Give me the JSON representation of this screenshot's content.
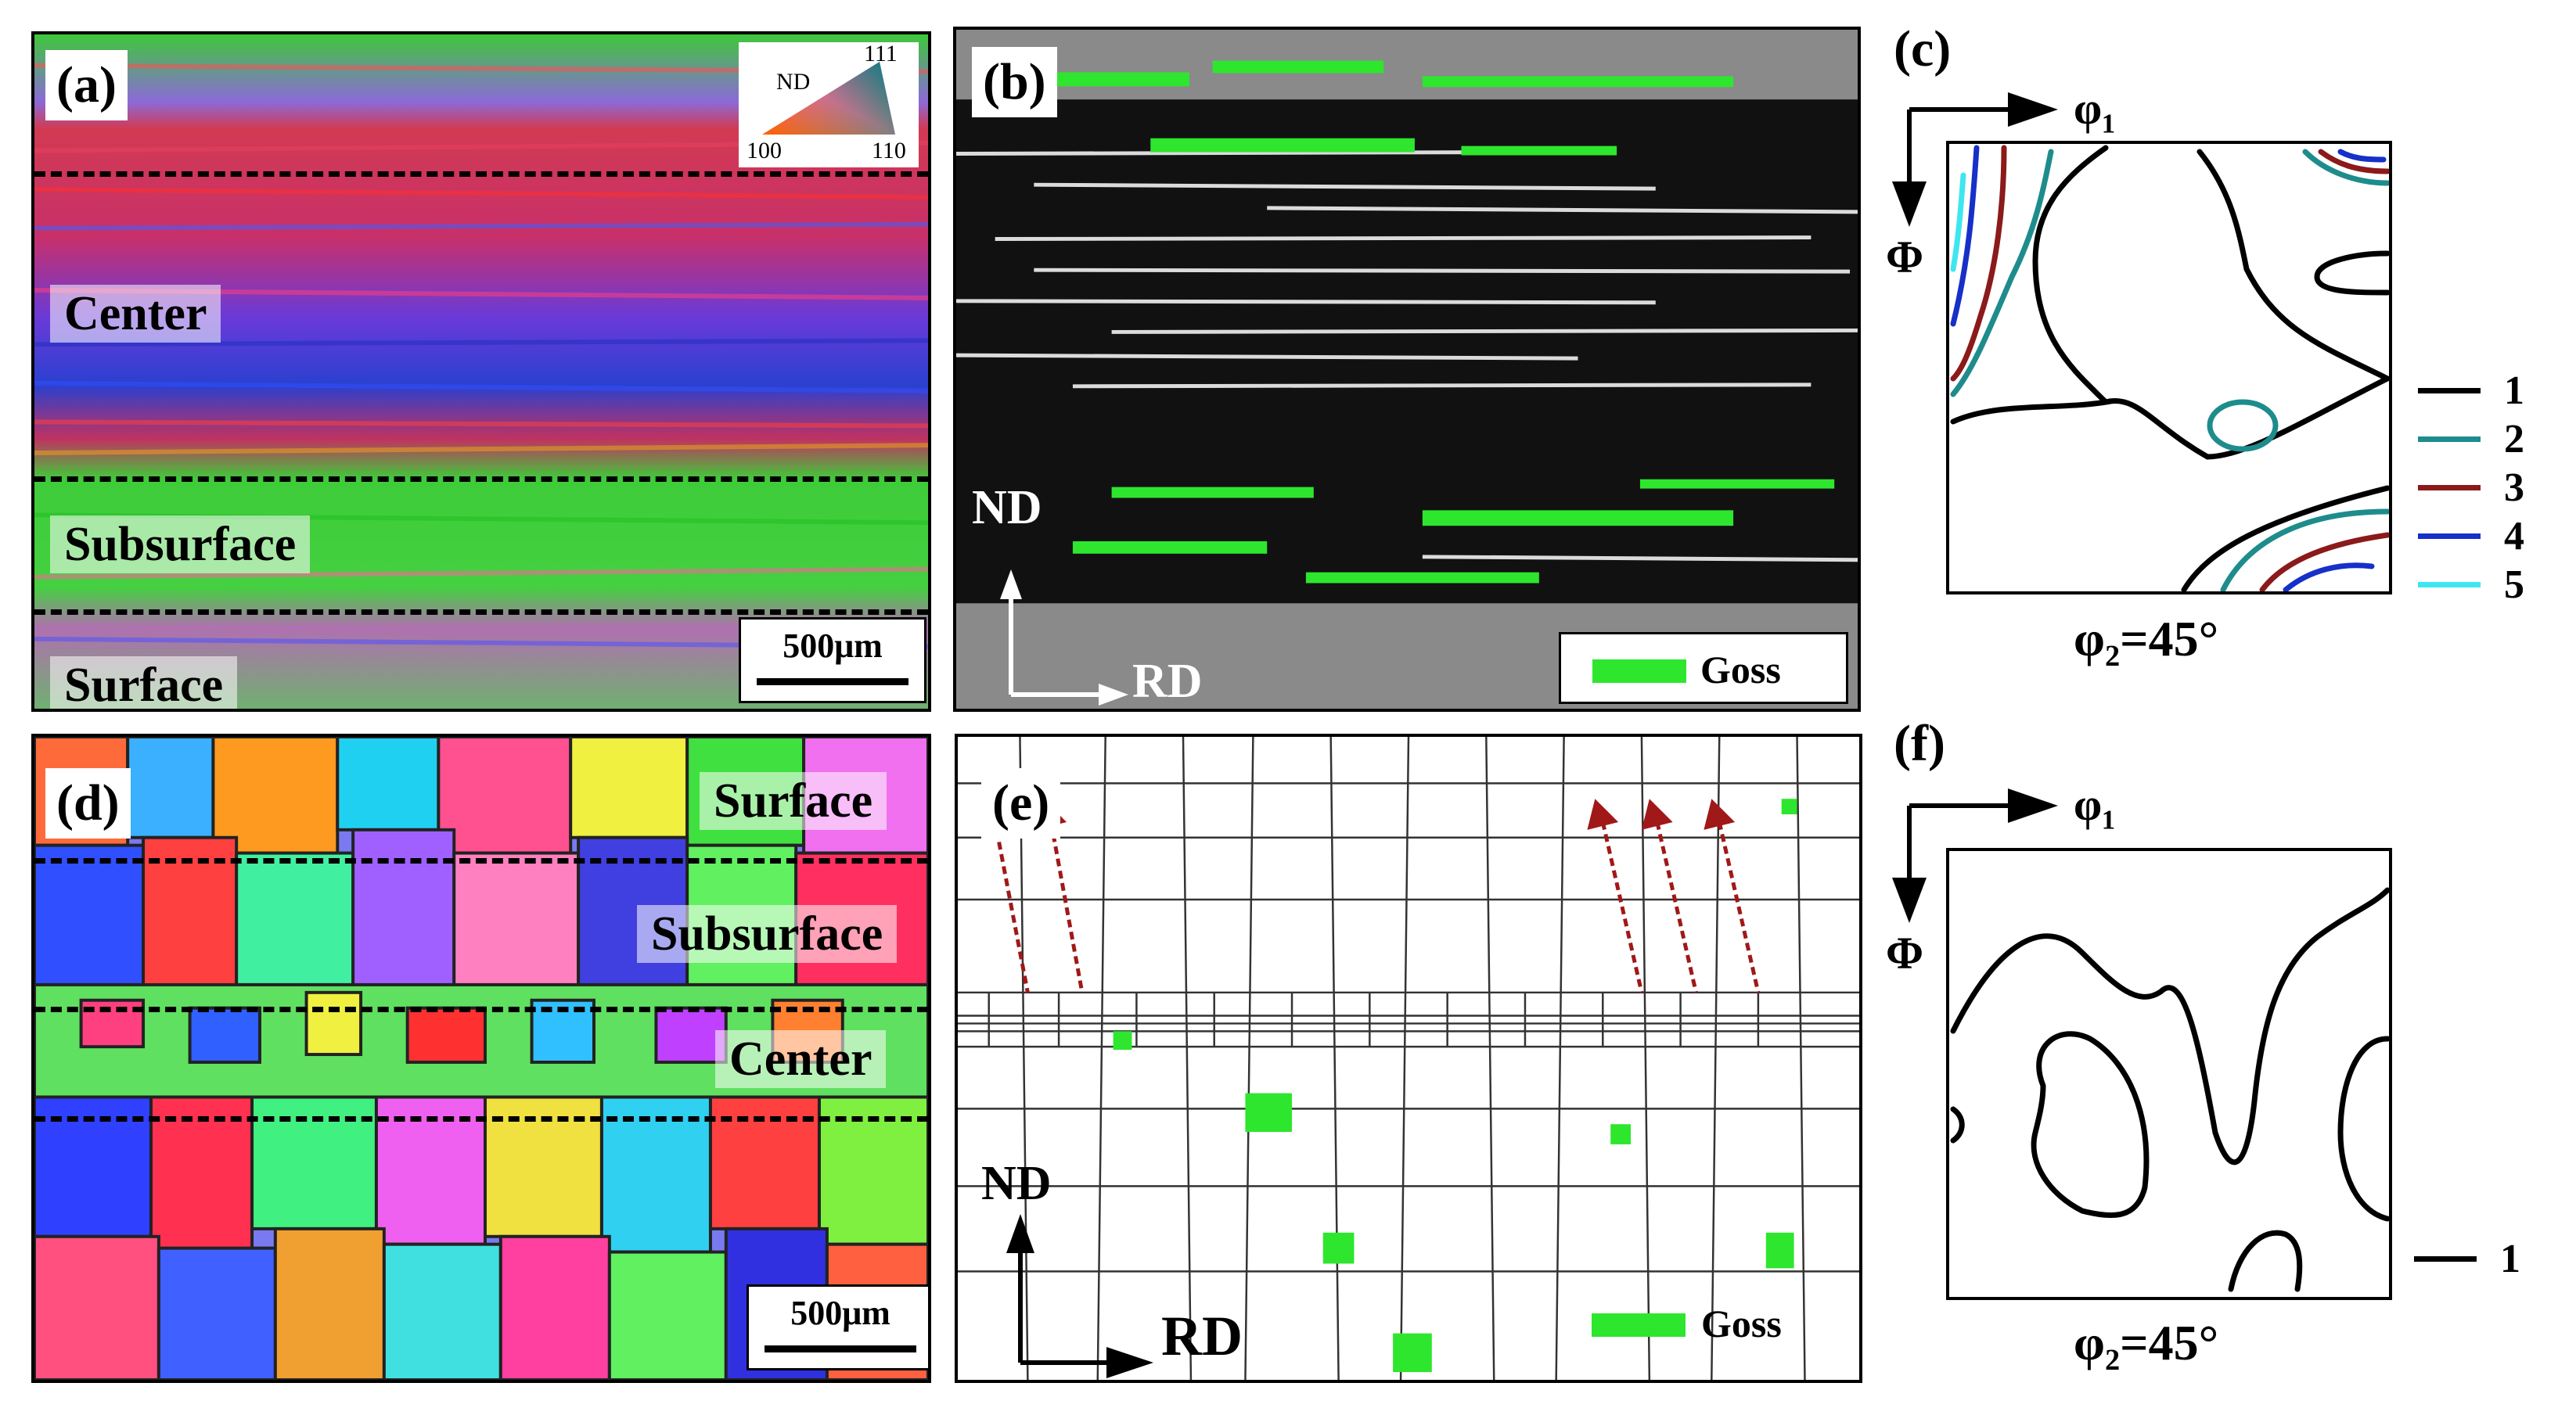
{
  "panels": {
    "a": {
      "label": "(a)",
      "regions": [
        "Center",
        "Subsurface",
        "Surface"
      ],
      "ipf_key": {
        "nd": "ND",
        "top": "111",
        "left": "100",
        "right": "110"
      },
      "scale_bar": "500μm"
    },
    "b": {
      "label": "(b)",
      "axis_nd": "ND",
      "axis_rd": "RD",
      "goss_label": "Goss",
      "goss_color": "#2ee62e"
    },
    "c": {
      "label": "(c)",
      "phi1": "φ₁",
      "phi": "Φ",
      "phi2": "φ₂=45°",
      "legend": [
        {
          "label": "1",
          "color": "#000000"
        },
        {
          "label": "2",
          "color": "#1e8c8c"
        },
        {
          "label": "3",
          "color": "#8b1a1a"
        },
        {
          "label": "4",
          "color": "#1630c8"
        },
        {
          "label": "5",
          "color": "#3ee6f0"
        }
      ]
    },
    "d": {
      "label": "(d)",
      "regions": [
        "Surface",
        "Subsurface",
        "Center"
      ],
      "scale_bar": "500μm"
    },
    "e": {
      "label": "(e)",
      "axis_nd": "ND",
      "axis_rd": "RD",
      "goss_label": "Goss",
      "goss_color": "#2ee62e",
      "arrow_color": "#a01818"
    },
    "f": {
      "label": "(f)",
      "phi1": "φ₁",
      "phi": "Φ",
      "phi2": "φ₂=45°",
      "legend": [
        {
          "label": "1",
          "color": "#000000"
        }
      ]
    }
  }
}
